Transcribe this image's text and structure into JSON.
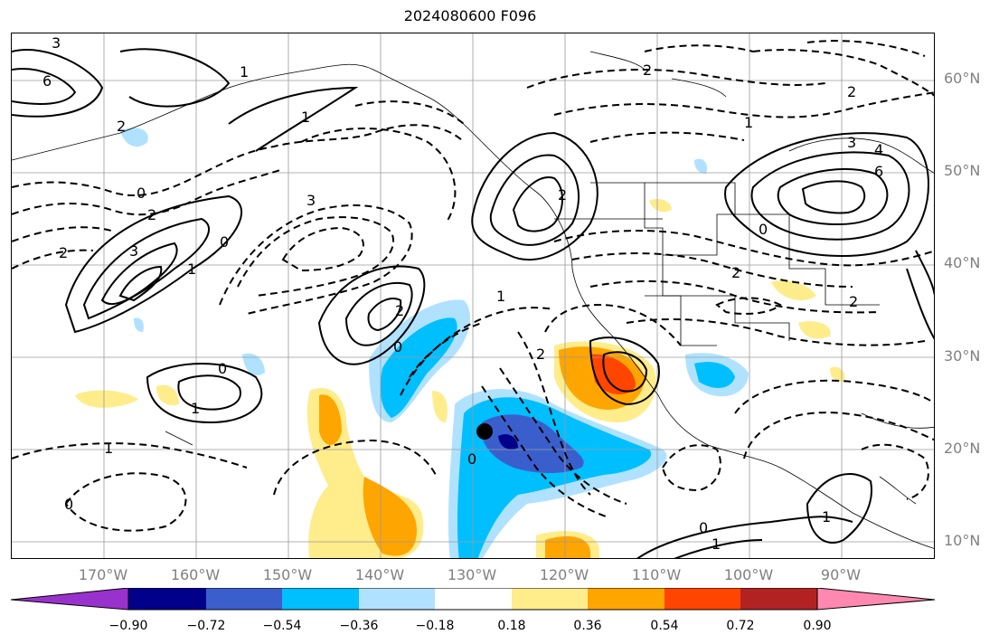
{
  "title": "2024080600 F096",
  "lat_labels": [
    "60°N",
    "50°N",
    "40°N",
    "30°N",
    "20°N",
    "10°N"
  ],
  "lon_labels": [
    "170°W",
    "160°W",
    "150°W",
    "140°W",
    "130°W",
    "120°W",
    "110°W",
    "100°W",
    "90°W"
  ],
  "colorbar": {
    "ticks": [
      "−0.90",
      "−0.72",
      "−0.54",
      "−0.36",
      "−0.18",
      "0.18",
      "0.36",
      "0.54",
      "0.72",
      "0.90"
    ],
    "colors": [
      "#9932cc",
      "#00008b",
      "#3a5fcd",
      "#00bfff",
      "#b0e2ff",
      "#ffffff",
      "#ffec8b",
      "#ffa500",
      "#ff4500",
      "#b22222",
      "#ff88b0"
    ]
  },
  "contour_labels": [
    "3",
    "6",
    "2",
    "1",
    "0",
    "2",
    "3",
    "2",
    "1",
    "3",
    "0",
    "1",
    "0",
    "1",
    "0",
    "2",
    "1",
    "2",
    "3",
    "4",
    "6",
    "2",
    "2",
    "2",
    "0",
    "1",
    "1",
    "0",
    "0",
    "1",
    "2",
    "2",
    "0",
    "1"
  ],
  "marker": {
    "lon": -128.5,
    "lat": 22
  }
}
